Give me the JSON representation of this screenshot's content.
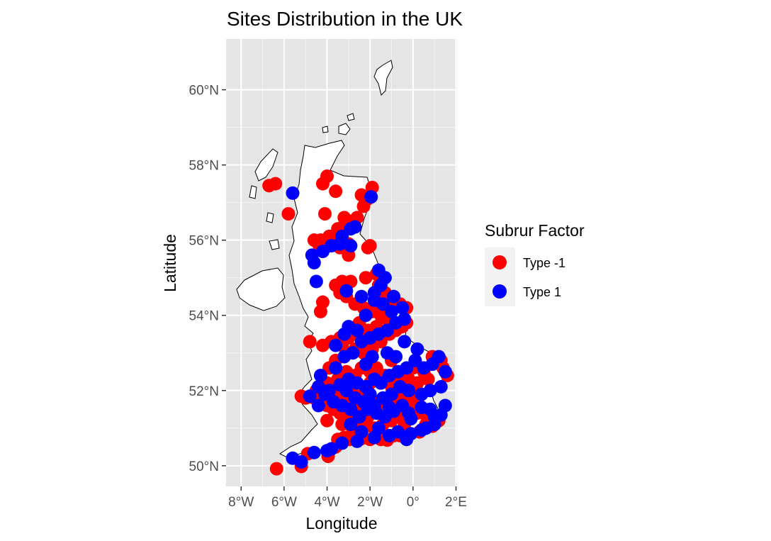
{
  "chart_data": {
    "type": "scatter",
    "title": "Sites Distribution in the UK",
    "xlabel": "Longitude",
    "ylabel": "Latitude",
    "xlim": [
      -8.7,
      2.05
    ],
    "ylim": [
      49.45,
      61.35
    ],
    "x_ticks": [
      {
        "value": -8,
        "label": "8°W"
      },
      {
        "value": -6,
        "label": "6°W"
      },
      {
        "value": -4,
        "label": "4°W"
      },
      {
        "value": -2,
        "label": "2°W"
      },
      {
        "value": 0,
        "label": "0°"
      },
      {
        "value": 2,
        "label": "2°E"
      }
    ],
    "y_ticks": [
      {
        "value": 50,
        "label": "50°N"
      },
      {
        "value": 52,
        "label": "52°N"
      },
      {
        "value": 54,
        "label": "54°N"
      },
      {
        "value": 56,
        "label": "56°N"
      },
      {
        "value": 58,
        "label": "58°N"
      },
      {
        "value": 60,
        "label": "60°N"
      }
    ],
    "grid": true,
    "background_color": "#e5e5e5",
    "legend": {
      "title": "Subrur Factor",
      "position": "right"
    },
    "series": [
      {
        "name": "Type -1",
        "color": "#ff0000",
        "points": [
          [
            -6.35,
            49.92
          ],
          [
            -5.2,
            49.98
          ],
          [
            -4.9,
            50.32
          ],
          [
            -3.95,
            50.25
          ],
          [
            -3.6,
            50.5
          ],
          [
            -3.5,
            50.7
          ],
          [
            -3.2,
            50.75
          ],
          [
            -2.95,
            50.7
          ],
          [
            -2.4,
            50.72
          ],
          [
            -2.0,
            50.7
          ],
          [
            -1.5,
            50.7
          ],
          [
            -1.2,
            50.68
          ],
          [
            -0.9,
            50.8
          ],
          [
            -0.5,
            50.85
          ],
          [
            -0.2,
            50.85
          ],
          [
            0.3,
            50.9
          ],
          [
            0.9,
            51.05
          ],
          [
            1.2,
            51.2
          ],
          [
            0.6,
            51.35
          ],
          [
            0.2,
            51.4
          ],
          [
            -0.1,
            51.5
          ],
          [
            -0.3,
            51.45
          ],
          [
            -0.6,
            51.3
          ],
          [
            -1.0,
            51.2
          ],
          [
            -1.4,
            51.1
          ],
          [
            -1.8,
            51.0
          ],
          [
            -2.2,
            51.05
          ],
          [
            -2.6,
            51.2
          ],
          [
            -3.0,
            51.3
          ],
          [
            -3.4,
            51.4
          ],
          [
            -3.7,
            51.5
          ],
          [
            -4.0,
            51.6
          ],
          [
            -4.3,
            51.7
          ],
          [
            -4.6,
            51.8
          ],
          [
            -5.0,
            51.8
          ],
          [
            -5.2,
            51.85
          ],
          [
            -4.5,
            52.0
          ],
          [
            -4.0,
            52.2
          ],
          [
            -3.5,
            52.3
          ],
          [
            -3.1,
            52.5
          ],
          [
            -2.7,
            52.4
          ],
          [
            -2.4,
            52.6
          ],
          [
            -2.0,
            52.5
          ],
          [
            -1.7,
            52.6
          ],
          [
            -1.3,
            52.4
          ],
          [
            -0.9,
            52.3
          ],
          [
            -0.5,
            52.2
          ],
          [
            -0.2,
            52.3
          ],
          [
            0.2,
            52.2
          ],
          [
            0.5,
            52.5
          ],
          [
            0.9,
            52.9
          ],
          [
            1.3,
            52.8
          ],
          [
            1.6,
            52.4
          ],
          [
            0.1,
            52.0
          ],
          [
            -0.4,
            51.9
          ],
          [
            -0.8,
            51.8
          ],
          [
            -1.2,
            51.7
          ],
          [
            -1.6,
            51.7
          ],
          [
            -2.0,
            51.8
          ],
          [
            -2.3,
            51.9
          ],
          [
            -2.8,
            51.9
          ],
          [
            -3.2,
            51.7
          ],
          [
            -3.5,
            51.9
          ],
          [
            -3.9,
            52.6
          ],
          [
            -3.6,
            52.8
          ],
          [
            -3.1,
            53.0
          ],
          [
            -2.7,
            53.1
          ],
          [
            -2.3,
            53.0
          ],
          [
            -1.9,
            53.1
          ],
          [
            -1.5,
            53.3
          ],
          [
            -1.1,
            53.5
          ],
          [
            -0.8,
            53.6
          ],
          [
            -0.5,
            53.7
          ],
          [
            -0.3,
            53.8
          ],
          [
            -1.2,
            53.9
          ],
          [
            -1.5,
            54.0
          ],
          [
            -1.9,
            54.1
          ],
          [
            -2.3,
            54.2
          ],
          [
            -2.7,
            54.3
          ],
          [
            -3.1,
            54.5
          ],
          [
            -3.4,
            54.6
          ],
          [
            -3.6,
            54.8
          ],
          [
            -2.9,
            54.9
          ],
          [
            -2.2,
            55.0
          ],
          [
            -1.7,
            55.1
          ],
          [
            -1.6,
            54.8
          ],
          [
            -1.3,
            54.6
          ],
          [
            -1.1,
            54.4
          ],
          [
            -0.6,
            54.3
          ],
          [
            -0.3,
            54.2
          ],
          [
            -4.3,
            54.1
          ],
          [
            -4.2,
            54.35
          ],
          [
            -4.8,
            53.3
          ],
          [
            -4.2,
            53.2
          ],
          [
            -3.8,
            53.3
          ],
          [
            -3.4,
            53.4
          ],
          [
            -3.0,
            53.4
          ],
          [
            -2.5,
            53.5
          ],
          [
            -2.1,
            53.6
          ],
          [
            -1.7,
            53.7
          ],
          [
            -3.0,
            55.9
          ],
          [
            -3.4,
            55.8
          ],
          [
            -3.7,
            55.9
          ],
          [
            -4.1,
            55.8
          ],
          [
            -4.4,
            55.9
          ],
          [
            -4.3,
            56.0
          ],
          [
            -3.9,
            56.1
          ],
          [
            -3.5,
            56.3
          ],
          [
            -3.2,
            56.4
          ],
          [
            -2.9,
            56.5
          ],
          [
            -2.6,
            56.6
          ],
          [
            -2.3,
            56.9
          ],
          [
            -2.1,
            57.1
          ],
          [
            -1.9,
            57.4
          ],
          [
            -2.4,
            57.2
          ],
          [
            -3.2,
            56.6
          ],
          [
            -3.5,
            56.2
          ],
          [
            -4.1,
            56.7
          ],
          [
            -4.6,
            56.0
          ],
          [
            -3.0,
            55.6
          ],
          [
            -2.1,
            55.8
          ],
          [
            -2.0,
            55.85
          ],
          [
            -4.0,
            57.7
          ],
          [
            -4.2,
            57.5
          ],
          [
            -3.6,
            57.3
          ],
          [
            -6.7,
            57.45
          ],
          [
            -6.4,
            57.5
          ],
          [
            -5.8,
            56.7
          ],
          [
            -3.3,
            54.9
          ],
          [
            -2.0,
            52.2
          ],
          [
            -1.0,
            52.1
          ],
          [
            0.0,
            52.6
          ],
          [
            -0.7,
            51.6
          ],
          [
            -2.5,
            51.5
          ],
          [
            -1.3,
            51.4
          ],
          [
            -0.4,
            51.1
          ],
          [
            0.6,
            51.1
          ],
          [
            -3.3,
            51.1
          ],
          [
            -4.0,
            51.2
          ],
          [
            -2.8,
            50.95
          ],
          [
            -1.7,
            50.9
          ],
          [
            -3.3,
            53.2
          ],
          [
            -2.5,
            53.8
          ],
          [
            -1.0,
            52.8
          ],
          [
            0.7,
            52.3
          ],
          [
            1.4,
            52.6
          ],
          [
            -0.6,
            50.8
          ],
          [
            -2.1,
            51.3
          ],
          [
            -0.1,
            51.7
          ],
          [
            0.3,
            51.6
          ]
        ]
      },
      {
        "name": "Type 1",
        "color": "#0000ff",
        "points": [
          [
            -5.6,
            50.2
          ],
          [
            -5.2,
            50.1
          ],
          [
            -4.6,
            50.35
          ],
          [
            -4.0,
            50.4
          ],
          [
            -3.3,
            50.6
          ],
          [
            -2.6,
            50.65
          ],
          [
            -1.8,
            50.75
          ],
          [
            -1.1,
            50.8
          ],
          [
            -0.7,
            50.9
          ],
          [
            -0.1,
            50.85
          ],
          [
            0.4,
            50.95
          ],
          [
            1.0,
            51.1
          ],
          [
            1.3,
            51.35
          ],
          [
            0.8,
            51.5
          ],
          [
            0.4,
            51.55
          ],
          [
            -0.2,
            51.4
          ],
          [
            -0.5,
            51.6
          ],
          [
            -0.9,
            51.45
          ],
          [
            -1.3,
            51.3
          ],
          [
            -1.7,
            51.4
          ],
          [
            -2.1,
            51.5
          ],
          [
            -2.5,
            51.3
          ],
          [
            -2.9,
            51.5
          ],
          [
            -3.3,
            51.6
          ],
          [
            -3.7,
            51.7
          ],
          [
            -4.1,
            51.9
          ],
          [
            -4.4,
            52.1
          ],
          [
            -4.8,
            51.85
          ],
          [
            -3.9,
            52.0
          ],
          [
            -3.4,
            52.15
          ],
          [
            -3.0,
            52.3
          ],
          [
            -2.6,
            52.2
          ],
          [
            -2.2,
            52.1
          ],
          [
            -1.8,
            52.3
          ],
          [
            -1.5,
            52.2
          ],
          [
            -1.1,
            52.4
          ],
          [
            -0.7,
            52.5
          ],
          [
            -0.3,
            52.6
          ],
          [
            0.1,
            52.8
          ],
          [
            0.5,
            52.6
          ],
          [
            0.9,
            52.7
          ],
          [
            1.2,
            52.9
          ],
          [
            1.5,
            52.5
          ],
          [
            1.3,
            52.1
          ],
          [
            0.8,
            52.0
          ],
          [
            0.4,
            51.9
          ],
          [
            -0.2,
            52.0
          ],
          [
            -0.6,
            52.1
          ],
          [
            -1.0,
            51.9
          ],
          [
            -1.4,
            51.8
          ],
          [
            -1.8,
            51.6
          ],
          [
            -2.3,
            51.7
          ],
          [
            -2.7,
            51.8
          ],
          [
            -3.1,
            52.0
          ],
          [
            -3.6,
            52.6
          ],
          [
            -3.2,
            52.9
          ],
          [
            -2.8,
            53.0
          ],
          [
            -2.4,
            53.3
          ],
          [
            -2.0,
            53.4
          ],
          [
            -1.6,
            53.5
          ],
          [
            -1.2,
            53.6
          ],
          [
            -0.8,
            53.8
          ],
          [
            -0.4,
            53.9
          ],
          [
            -1.0,
            54.1
          ],
          [
            -1.4,
            54.3
          ],
          [
            -1.8,
            54.4
          ],
          [
            -2.2,
            54.0
          ],
          [
            -2.6,
            53.6
          ],
          [
            -3.0,
            53.7
          ],
          [
            -1.5,
            54.8
          ],
          [
            -1.3,
            55.0
          ],
          [
            -1.6,
            55.2
          ],
          [
            -1.8,
            54.6
          ],
          [
            -0.9,
            54.5
          ],
          [
            -0.5,
            54.2
          ],
          [
            -4.5,
            54.9
          ],
          [
            -4.6,
            55.4
          ],
          [
            -4.7,
            55.6
          ],
          [
            -4.2,
            55.7
          ],
          [
            -3.8,
            55.85
          ],
          [
            -3.3,
            56.1
          ],
          [
            -2.9,
            56.3
          ],
          [
            -2.7,
            56.35
          ],
          [
            -2.9,
            55.85
          ],
          [
            -3.4,
            55.9
          ],
          [
            -1.95,
            57.15
          ],
          [
            -5.6,
            57.25
          ],
          [
            -3.1,
            54.65
          ],
          [
            -2.4,
            50.9
          ],
          [
            -0.3,
            50.7
          ],
          [
            1.0,
            51.3
          ],
          [
            -1.9,
            52.9
          ],
          [
            -0.4,
            53.3
          ],
          [
            0.2,
            53.1
          ],
          [
            -2.2,
            52.7
          ],
          [
            -3.6,
            53.2
          ],
          [
            -4.3,
            52.4
          ],
          [
            -4.4,
            51.6
          ],
          [
            -2.0,
            51.9
          ],
          [
            -0.8,
            52.9
          ],
          [
            -1.1,
            51.55
          ],
          [
            0.6,
            51.0
          ],
          [
            -0.1,
            51.25
          ],
          [
            1.5,
            51.6
          ],
          [
            -1.6,
            51.0
          ],
          [
            -2.9,
            51.1
          ],
          [
            -3.8,
            50.45
          ],
          [
            -3.2,
            53.5
          ],
          [
            -2.4,
            54.5
          ],
          [
            -1.2,
            53.0
          ]
        ]
      }
    ]
  }
}
